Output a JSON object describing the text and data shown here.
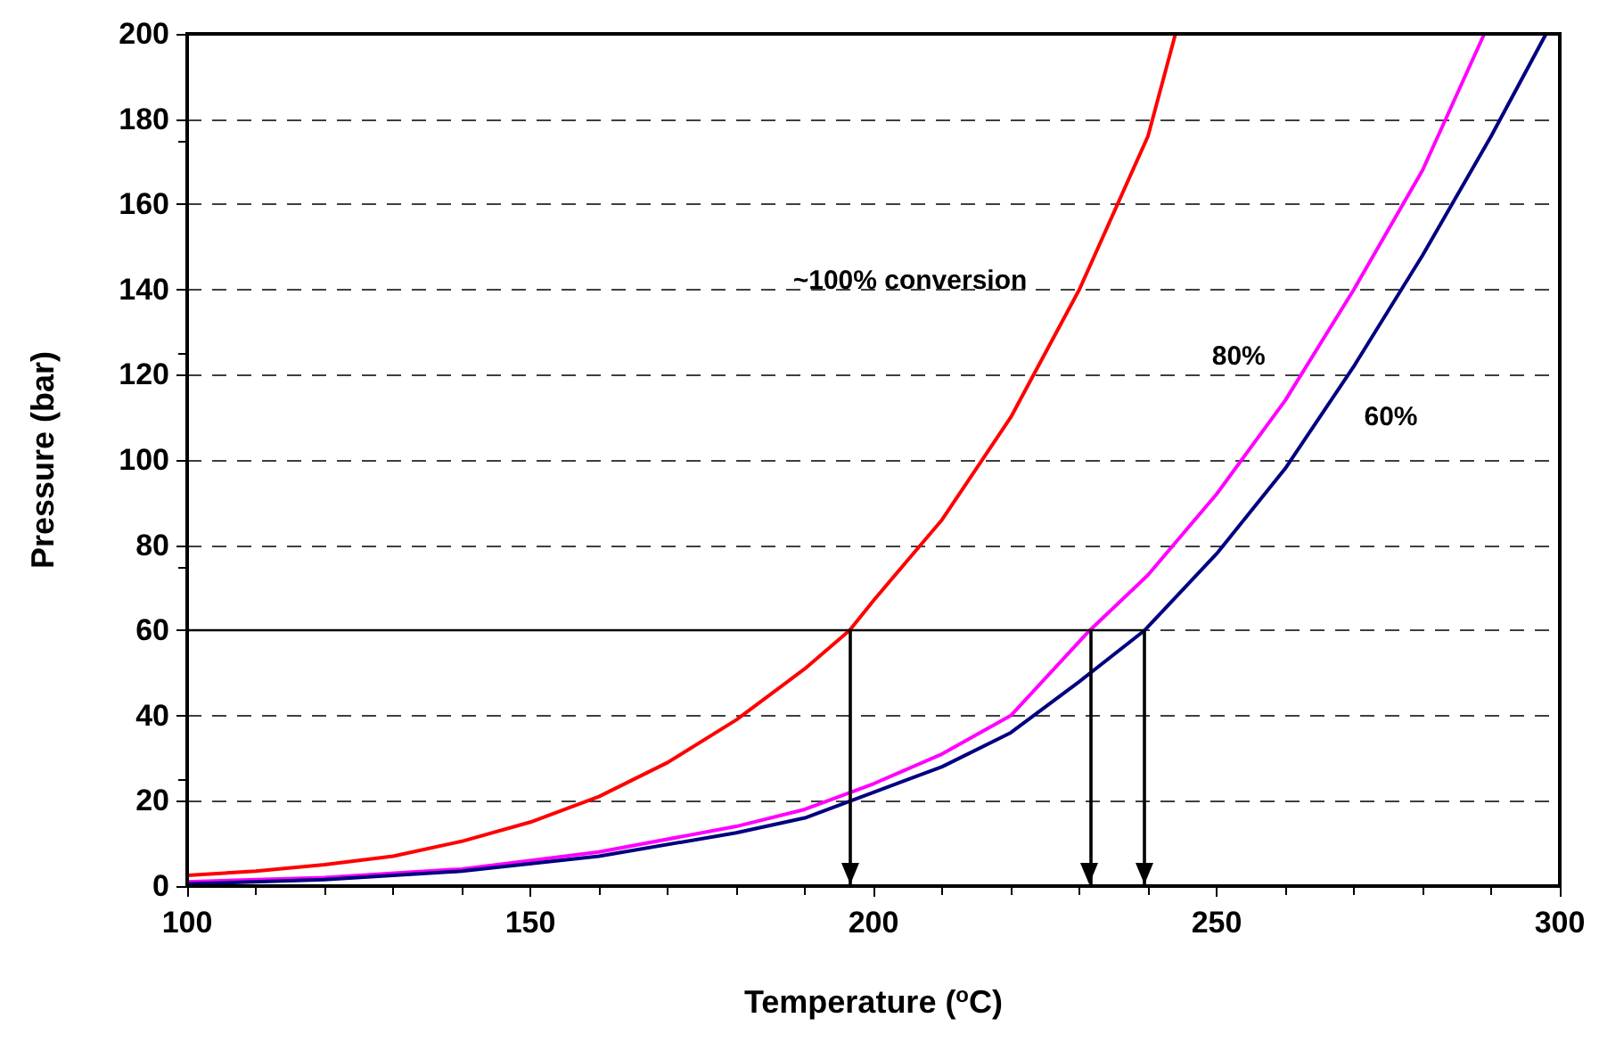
{
  "chart_data": {
    "type": "line",
    "xlabel": "Temperature ($^{o}$C)",
    "ylabel": "Pressure (bar)",
    "xlim": [
      100,
      300
    ],
    "xticks": [
      100,
      150,
      200,
      250,
      300
    ],
    "ylim": [
      0,
      200
    ],
    "yticks": [
      0,
      20,
      40,
      60,
      80,
      100,
      120,
      140,
      160,
      180,
      200
    ],
    "grid": "y",
    "legend": false,
    "marker": "none",
    "line_style": "solid",
    "series": [
      {
        "name": "~100% conversion",
        "color": "#ff0000",
        "x": [
          100,
          110,
          120,
          130,
          140,
          150,
          160,
          170,
          180,
          190,
          196.5,
          200,
          210,
          220,
          230,
          240,
          244
        ],
        "values": [
          2.5,
          3.5,
          5,
          7,
          10.5,
          15,
          21,
          29,
          39,
          51,
          60,
          67,
          86,
          110,
          140,
          176,
          200
        ]
      },
      {
        "name": "80%",
        "color": "#ff00ff",
        "x": [
          100,
          120,
          140,
          160,
          180,
          190,
          200,
          210,
          220,
          231.5,
          240,
          250,
          260,
          270,
          280,
          289
        ],
        "values": [
          1,
          2,
          4,
          8,
          14,
          18,
          24,
          31,
          40,
          60,
          73,
          92,
          114,
          140,
          168,
          200
        ]
      },
      {
        "name": "60%",
        "color": "#000080",
        "x": [
          100,
          120,
          140,
          160,
          180,
          190,
          200,
          210,
          220,
          230,
          239.5,
          250,
          260,
          270,
          280,
          290,
          298
        ],
        "values": [
          0.5,
          1.5,
          3.5,
          7,
          12.5,
          16,
          22,
          28,
          36,
          48,
          60,
          78,
          98,
          122,
          148,
          176,
          200
        ]
      }
    ],
    "ref_lines": [
      {
        "axis": "y",
        "value": 60,
        "color": "#000000"
      },
      {
        "axis": "x",
        "value": 196.5,
        "color": "#000000"
      },
      {
        "axis": "x",
        "value": 231.5,
        "color": "#000000"
      },
      {
        "axis": "x",
        "value": 239.5,
        "color": "#000000"
      }
    ]
  }
}
